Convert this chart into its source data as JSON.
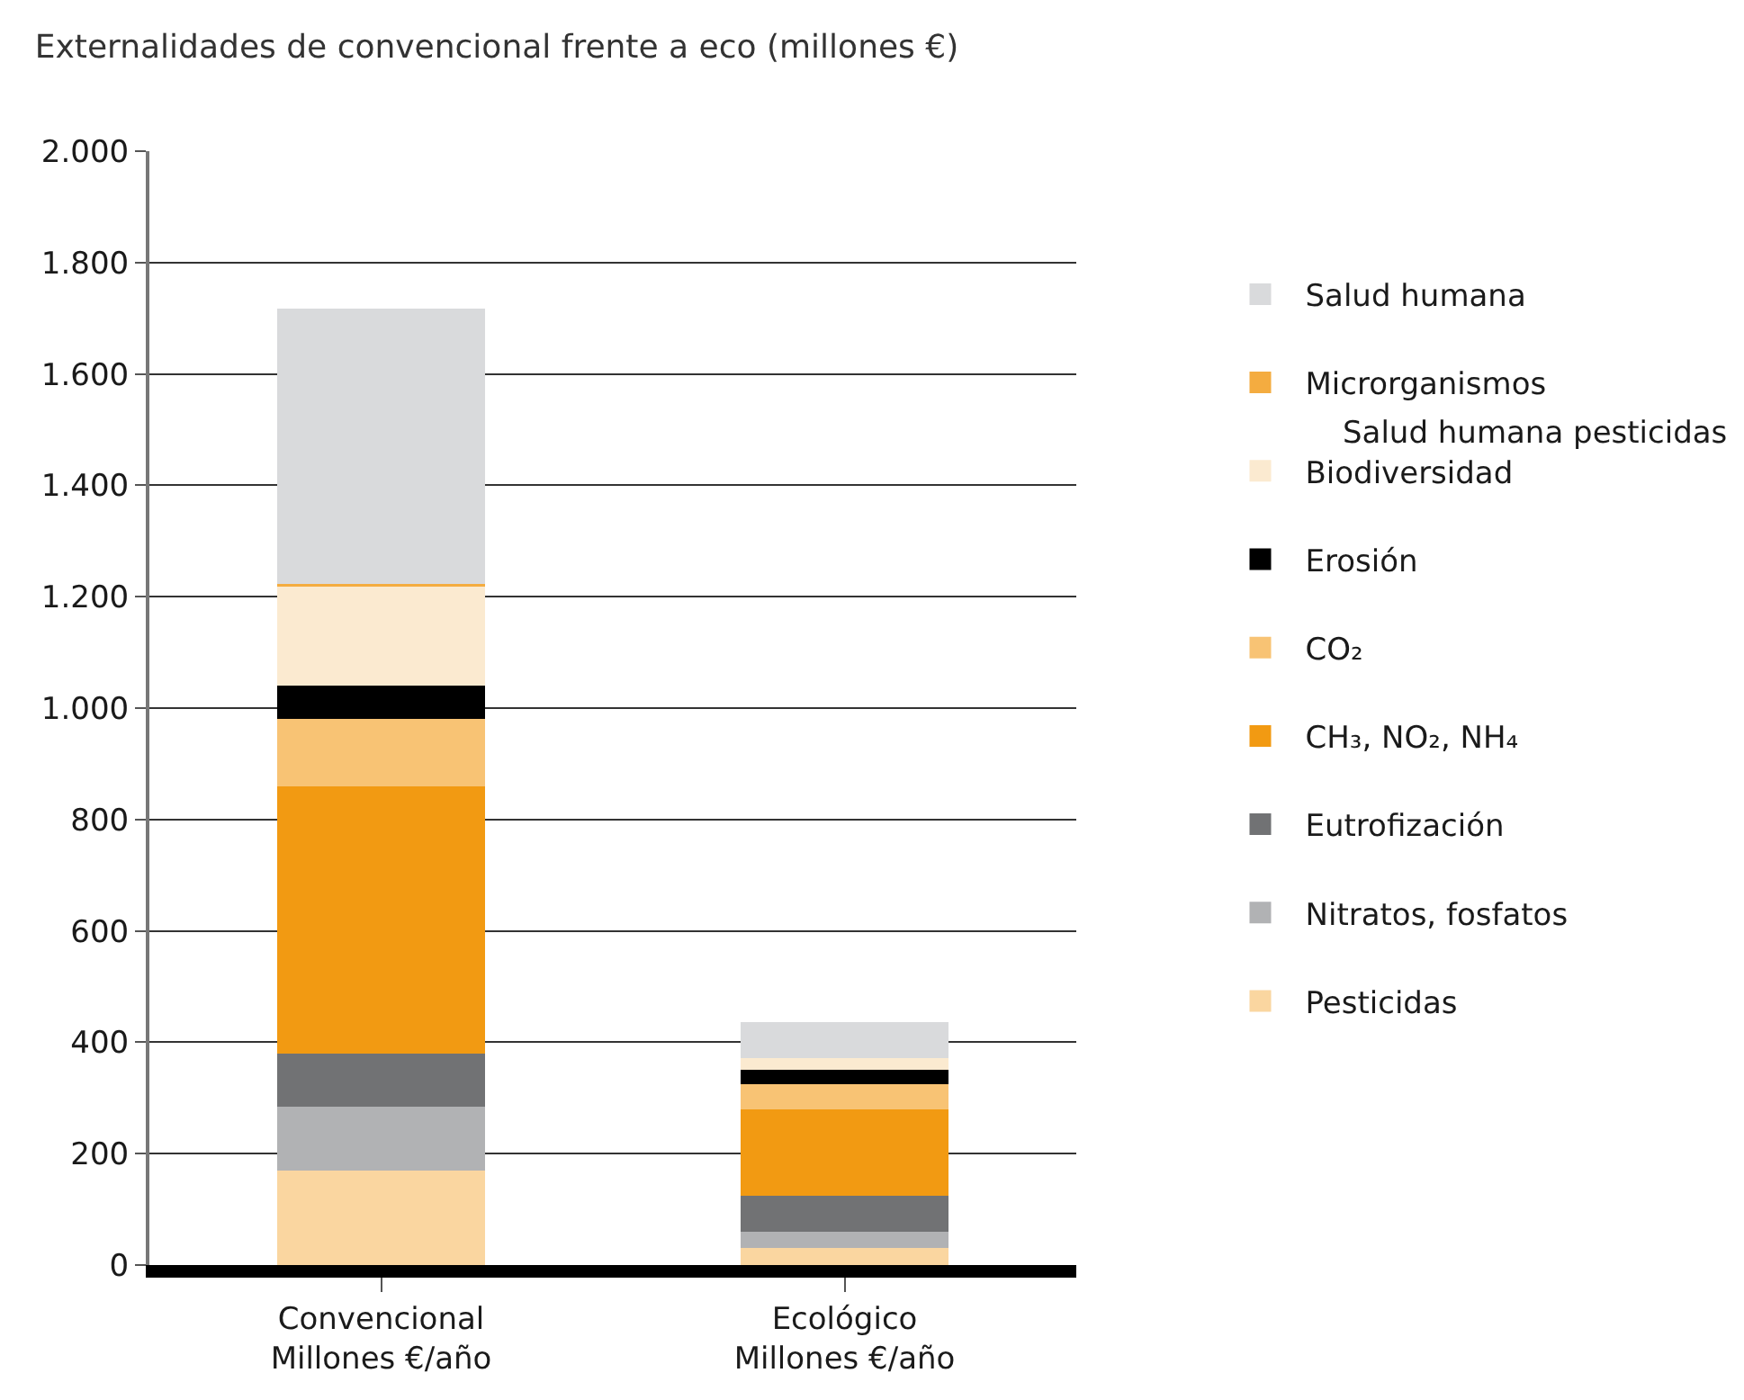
{
  "chart_data": {
    "type": "bar",
    "stacked": true,
    "title": "Externalidades de convencional frente a eco (millones €)",
    "categories": [
      "Convencional\nMillones €/año",
      "Ecológico\nMillones €/año"
    ],
    "series": [
      {
        "name": "Pesticidas",
        "color": "#fad6a0",
        "values": [
          170,
          30
        ]
      },
      {
        "name": "Nitratos, fosfatos",
        "color": "#b1b2b4",
        "values": [
          115,
          30
        ]
      },
      {
        "name": "Eutrofización",
        "color": "#717274",
        "values": [
          95,
          65
        ]
      },
      {
        "name": "CH₃, NO₂, NH₄",
        "color": "#f29a12",
        "values": [
          480,
          155
        ]
      },
      {
        "name": "CO₂",
        "color": "#f8c374",
        "values": [
          120,
          45
        ]
      },
      {
        "name": "Erosión",
        "color": "#000000",
        "values": [
          60,
          25
        ]
      },
      {
        "name": "Biodiversidad",
        "color": "#fbead0",
        "values": [
          180,
          22
        ]
      },
      {
        "name": "Microrganismos",
        "color": "#f4ac40",
        "values": [
          3,
          null
        ]
      },
      {
        "name": "Salud humana",
        "color": "#d9dadc",
        "values": [
          495,
          65
        ]
      }
    ],
    "annotations": [
      "Salud humana pesticidas"
    ],
    "ylim": [
      0,
      2000
    ],
    "yticks": [
      0,
      {
        "value": 200,
        "label": "200"
      },
      {
        "value": 400,
        "label": "400"
      },
      {
        "value": 600,
        "label": "600"
      },
      {
        "value": 800,
        "label": "800"
      },
      {
        "value": 1000,
        "label": "1.000"
      },
      {
        "value": 1200,
        "label": "1.200"
      },
      {
        "value": 1400,
        "label": "1.400"
      },
      {
        "value": 1600,
        "label": "1.600"
      },
      {
        "value": 1800,
        "label": "1.800"
      },
      {
        "value": 2000,
        "label": "2.000"
      }
    ],
    "grid": "y",
    "legend": "right"
  }
}
